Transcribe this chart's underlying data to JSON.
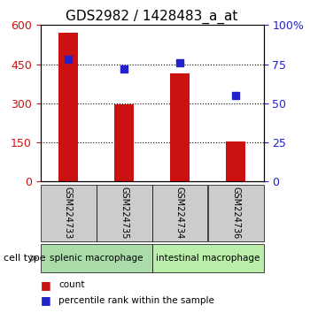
{
  "title": "GDS2982 / 1428483_a_at",
  "samples": [
    "GSM224733",
    "GSM224735",
    "GSM224734",
    "GSM224736"
  ],
  "counts": [
    570,
    295,
    415,
    155
  ],
  "percentiles": [
    78,
    72,
    76,
    55
  ],
  "ylim_left": [
    0,
    600
  ],
  "ylim_right": [
    0,
    100
  ],
  "yticks_left": [
    0,
    150,
    300,
    450,
    600
  ],
  "yticks_right": [
    0,
    25,
    50,
    75,
    100
  ],
  "ytick_labels_right": [
    "0",
    "25",
    "50",
    "75",
    "100%"
  ],
  "bar_color": "#cc1111",
  "dot_color": "#2222cc",
  "grid_color": "#000000",
  "groups": [
    {
      "label": "splenic macrophage",
      "samples": [
        0,
        1
      ],
      "color": "#aaddaa"
    },
    {
      "label": "intestinal macrophage",
      "samples": [
        2,
        3
      ],
      "color": "#bbeeaa"
    }
  ],
  "cell_type_label": "cell type",
  "legend_items": [
    {
      "label": "count",
      "color": "#cc1111",
      "marker": "s"
    },
    {
      "label": "percentile rank within the sample",
      "color": "#2222cc",
      "marker": "s"
    }
  ],
  "sample_box_color": "#cccccc",
  "bar_width": 0.35,
  "title_fontsize": 11
}
